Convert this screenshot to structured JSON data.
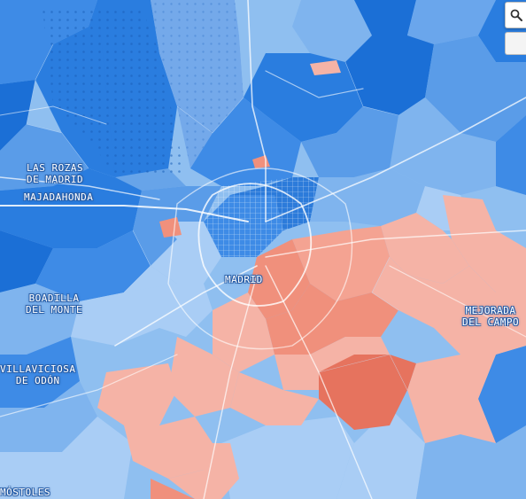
{
  "map": {
    "palette": {
      "blue_dark": "#1b6fd6",
      "blue_mid": "#3e8be6",
      "blue_light": "#7fb4ee",
      "blue_pale": "#a9cdf5",
      "red_light": "#f5b3a6",
      "red_mid": "#f0907c",
      "red_dark": "#e6735e",
      "roads": "#ffffff"
    },
    "labels": {
      "las_rozas_1": "LAS ROZAS",
      "las_rozas_2": "DE MADRID",
      "majadahonda": "MAJADAHONDA",
      "madrid": "MADRID",
      "boadilla_1": "BOADILLA",
      "boadilla_2": "DEL MONTE",
      "mejorada_1": "MEJORADA",
      "mejorada_2": "DEL CAMPO",
      "villaviciosa_1": "VILLAVICIOSA",
      "villaviciosa_2": "DE ODÓN",
      "mostoles": "MÓSTOLES"
    }
  },
  "controls": {
    "search_icon": "search-icon",
    "panel_icon": "panel-toggle-icon"
  }
}
